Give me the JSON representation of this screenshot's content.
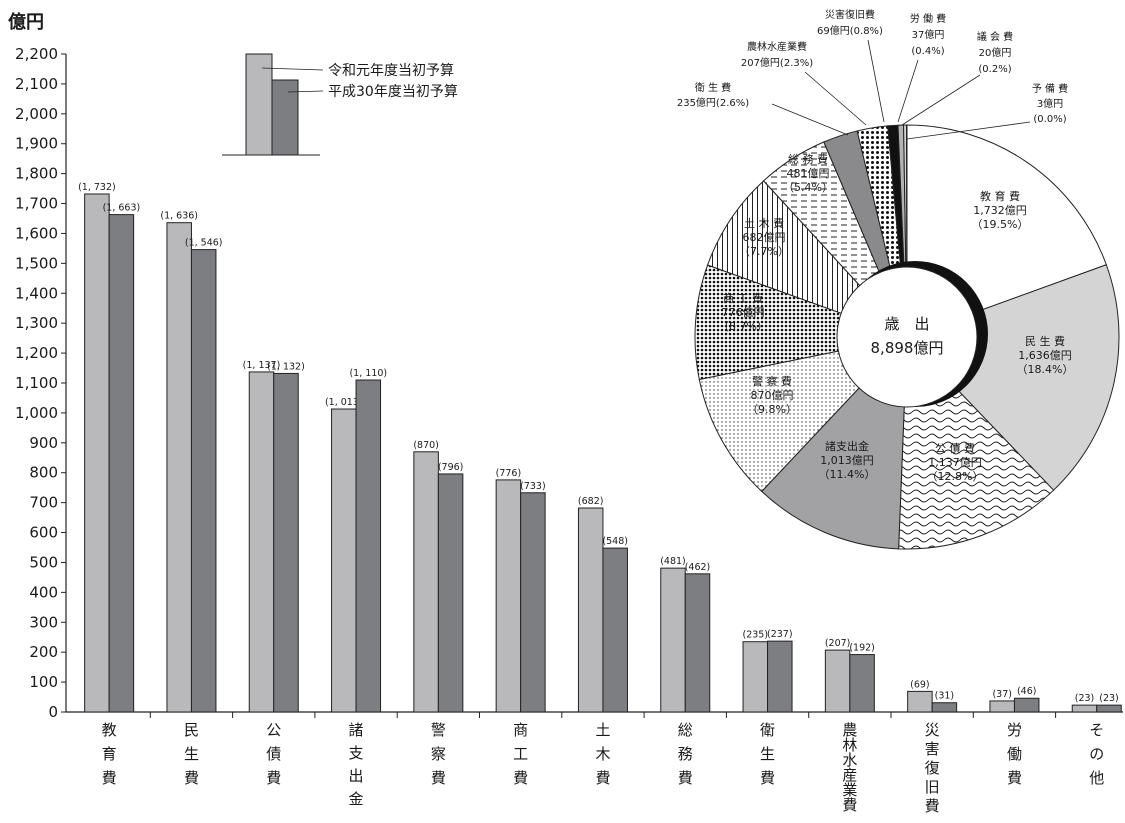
{
  "chart_data": [
    {
      "type": "bar",
      "unit_label": "億円",
      "ylim": [
        0,
        2200
      ],
      "yticks": [
        "0",
        "100",
        "200",
        "300",
        "400",
        "500",
        "600",
        "700",
        "800",
        "900",
        "1,000",
        "1,100",
        "1,200",
        "1,300",
        "1,400",
        "1,500",
        "1,600",
        "1,700",
        "1,800",
        "1,900",
        "2,000",
        "2,100",
        "2,200"
      ],
      "categories": [
        "教育費",
        "民生費",
        "公債費",
        "諸支出金",
        "警察費",
        "商工費",
        "土木費",
        "総務費",
        "衛生費",
        "農林水産業費",
        "災害復旧費",
        "労働費",
        "その他"
      ],
      "category_chars": [
        [
          "教",
          "育",
          "費"
        ],
        [
          "民",
          "生",
          "費"
        ],
        [
          "公",
          "債",
          "費"
        ],
        [
          "諸",
          "支",
          "出",
          "金"
        ],
        [
          "警",
          "察",
          "費"
        ],
        [
          "商",
          "工",
          "費"
        ],
        [
          "土",
          "木",
          "費"
        ],
        [
          "総",
          "務",
          "費"
        ],
        [
          "衛",
          "生",
          "費"
        ],
        [
          "農",
          "林",
          "水",
          "産",
          "業",
          "費"
        ],
        [
          "災",
          "害",
          "復",
          "旧",
          "費"
        ],
        [
          "労",
          "働",
          "費"
        ],
        [
          "そ",
          "の",
          "他"
        ]
      ],
      "series": [
        {
          "name": "令和元年度当初予算",
          "color": "#b9b9bb",
          "values": [
            1732,
            1636,
            1137,
            1013,
            870,
            776,
            682,
            481,
            235,
            207,
            69,
            37,
            23
          ],
          "labels": [
            "(1, 732)",
            "(1, 636)",
            "(1, 137)",
            "(1, 013)",
            "(870)",
            "(776)",
            "(682)",
            "(481)",
            "(235)",
            "(207)",
            "(69)",
            "(37)",
            "(23)"
          ]
        },
        {
          "name": "平成30年度当初予算",
          "color": "#7d7e82",
          "values": [
            1663,
            1546,
            1132,
            1110,
            796,
            733,
            548,
            462,
            237,
            192,
            31,
            46,
            23
          ],
          "labels": [
            "(1, 663)",
            "(1, 546)",
            "(1, 132)",
            "(1, 110)",
            "(796)",
            "(733)",
            "(548)",
            "(462)",
            "(237)",
            "(192)",
            "(31)",
            "(46)",
            "(23)"
          ]
        }
      ],
      "grid": false,
      "legend_position": "top-center"
    },
    {
      "type": "pie",
      "center_label": [
        "歳　出",
        "8,898億円"
      ],
      "slices": [
        {
          "name": "教 育 費",
          "amount": "1,732億円",
          "percent": "（19.5%）",
          "value": 1732,
          "pattern": "white",
          "label_position": "inside"
        },
        {
          "name": "民 生 費",
          "amount": "1,636億円",
          "percent": "（18.4%）",
          "value": 1636,
          "pattern": "lightgray",
          "label_position": "inside"
        },
        {
          "name": "公 債 費",
          "amount": "1,137億円",
          "percent": "（12.8%）",
          "value": 1137,
          "pattern": "wave",
          "label_position": "inside"
        },
        {
          "name": "諸支出金",
          "amount": "1,013億円",
          "percent": "（11.4%）",
          "value": 1013,
          "pattern": "midgray",
          "label_position": "inside"
        },
        {
          "name": "警 察 費",
          "amount": "870億円",
          "percent": "（9.8%）",
          "value": 870,
          "pattern": "finedots",
          "label_position": "inside"
        },
        {
          "name": "商 工 費",
          "amount": "776億円",
          "percent": "（8.7%）",
          "value": 776,
          "pattern": "densedots",
          "label_position": "inside"
        },
        {
          "name": "土 木 費",
          "amount": "682億円",
          "percent": "（7.7%）",
          "value": 682,
          "pattern": "vlines",
          "label_position": "inside"
        },
        {
          "name": "総 務 費",
          "amount": "481億円",
          "percent": "（5.4%）",
          "value": 481,
          "pattern": "dashes",
          "label_position": "inside"
        },
        {
          "name": "衛 生 費",
          "amount": "235億円(2.6%)",
          "percent": "",
          "value": 235,
          "pattern": "darkgray",
          "label_position": "outside-top-left"
        },
        {
          "name": "農林水産業費",
          "amount": "207億円(2.3%)",
          "percent": "",
          "value": 207,
          "pattern": "bigdots",
          "label_position": "outside-top"
        },
        {
          "name": "災害復旧費",
          "amount": "69億円(0.8%)",
          "percent": "",
          "value": 69,
          "pattern": "black",
          "label_position": "outside-top"
        },
        {
          "name": "労 働 費",
          "amount": "37億円",
          "percent": "(0.4%)",
          "value": 37,
          "pattern": "gray",
          "label_position": "outside-top"
        },
        {
          "name": "議 会 費",
          "amount": "20億円",
          "percent": "(0.2%)",
          "value": 20,
          "pattern": "lightgray",
          "label_position": "outside-top-right"
        },
        {
          "name": "予 備 費",
          "amount": "3億円",
          "percent": "(0.0%)",
          "value": 3,
          "pattern": "white",
          "label_position": "outside-right"
        }
      ]
    }
  ]
}
